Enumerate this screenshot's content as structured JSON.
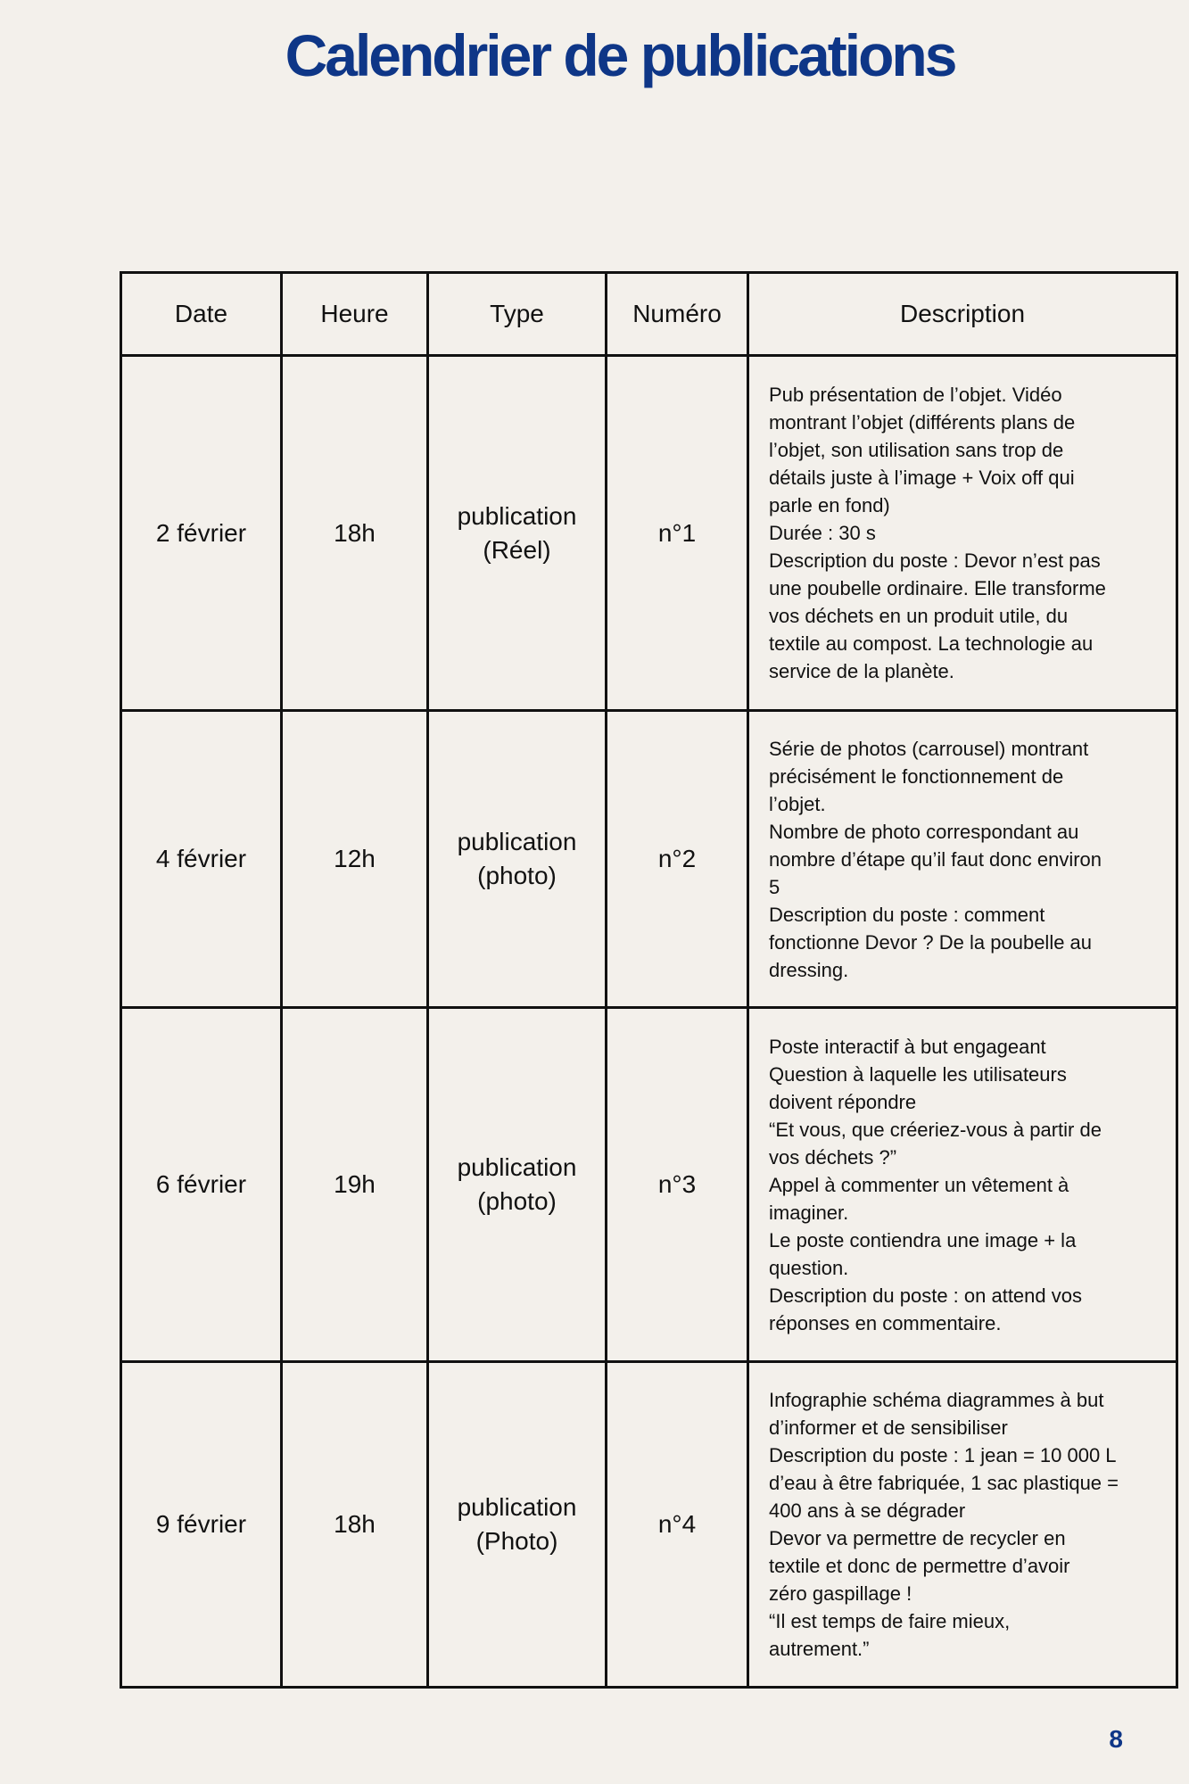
{
  "title": "Calendrier de publications",
  "table": {
    "headers": [
      "Date",
      "Heure",
      "Type",
      "Numéro",
      "Description"
    ],
    "rows": [
      {
        "date": "2 février",
        "heure": "18h",
        "type": [
          "publication",
          "(Réel)"
        ],
        "numero": "n°1",
        "description": [
          "Pub présentation de l’objet. Vidéo",
          "montrant l’objet (différents plans de",
          "l’objet, son utilisation sans trop de",
          "détails juste à l’image + Voix off qui",
          "parle en fond)",
          "Durée : 30 s",
          "Description du poste : Devor n’est pas",
          "une poubelle ordinaire. Elle transforme",
          "vos déchets en un produit utile, du",
          "textile au compost. La technologie au",
          "service de la planète."
        ]
      },
      {
        "date": "4 février",
        "heure": "12h",
        "type": [
          "publication",
          "(photo)"
        ],
        "numero": "n°2",
        "description": [
          "Série de photos (carrousel) montrant",
          "précisément le fonctionnement de",
          "l’objet.",
          "Nombre de photo correspondant au",
          "nombre d’étape qu’il faut donc environ",
          "5",
          "Description du poste : comment",
          "fonctionne Devor ? De la poubelle au",
          "dressing."
        ]
      },
      {
        "date": "6 février",
        "heure": "19h",
        "type": [
          "publication",
          "(photo)"
        ],
        "numero": "n°3",
        "description": [
          "Poste interactif à but engageant",
          "Question à laquelle les utilisateurs",
          "doivent répondre",
          "“Et vous, que créeriez-vous à partir de",
          "vos déchets ?”",
          "Appel à commenter un vêtement à",
          "imaginer.",
          "Le poste contiendra une image + la",
          "question.",
          "Description du poste : on attend vos",
          "réponses en commentaire."
        ]
      },
      {
        "date": "9 février",
        "heure": "18h",
        "type": [
          "publication",
          "(Photo)"
        ],
        "numero": "n°4",
        "description": [
          "Infographie schéma diagrammes à but",
          "d’informer et de sensibiliser",
          "Description du poste : 1 jean = 10 000 L",
          "d’eau à être fabriquée, 1 sac plastique =",
          "400 ans à se dégrader",
          "Devor va permettre de recycler en",
          "textile et donc de permettre d’avoir",
          "zéro gaspillage !",
          "“Il est temps de faire mieux,",
          "autrement.”"
        ]
      }
    ]
  },
  "page_number": "8",
  "colors": {
    "background": "#f3f0eb",
    "title": "#0e3687",
    "text": "#111111",
    "border": "#111111"
  }
}
